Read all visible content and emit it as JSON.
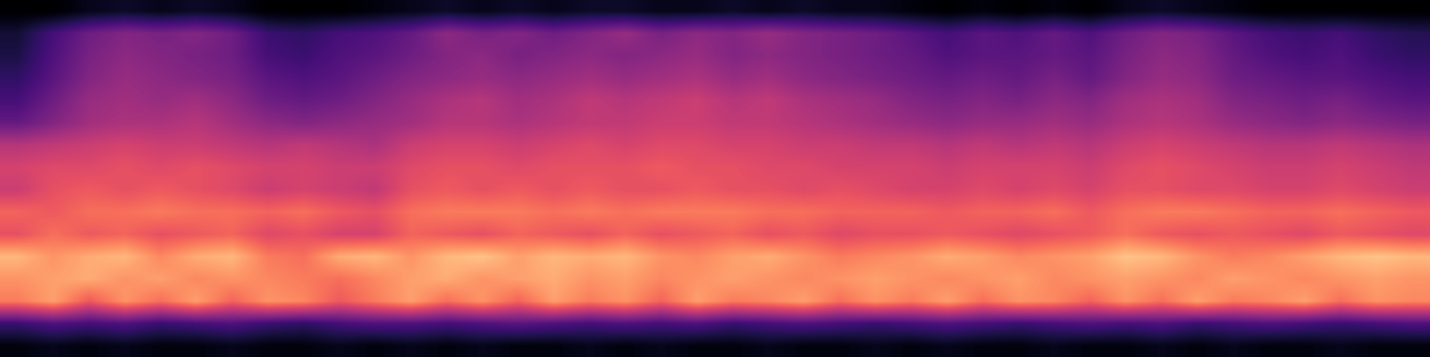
{
  "chart_data": {
    "type": "heatmap",
    "color": "magma",
    "tick_labels": false,
    "value_range": [
      -80,
      0
    ],
    "cells": [
      [
        -80,
        -80,
        -76,
        -74,
        -76,
        -74,
        -76,
        -80,
        -80,
        -80,
        -78,
        -76,
        -74,
        -76,
        -74,
        -76,
        -74,
        -74,
        -76,
        -76,
        -74,
        -76,
        -74,
        -76,
        -76,
        -78,
        -80,
        -78,
        -80,
        -78,
        -80,
        -76,
        -74,
        -76,
        -78,
        -80,
        -80,
        -80,
        -80,
        -80
      ],
      [
        -72,
        -62,
        -54,
        -50,
        -52,
        -50,
        -54,
        -64,
        -66,
        -62,
        -60,
        -56,
        -48,
        -52,
        -50,
        -54,
        -50,
        -46,
        -52,
        -48,
        -50,
        -46,
        -50,
        -52,
        -54,
        -58,
        -62,
        -58,
        -60,
        -56,
        -60,
        -54,
        -50,
        -52,
        -58,
        -62,
        -64,
        -62,
        -66,
        -68
      ],
      [
        -70,
        -60,
        -52,
        -48,
        -50,
        -52,
        -54,
        -62,
        -64,
        -60,
        -58,
        -54,
        -50,
        -48,
        -52,
        -50,
        -48,
        -50,
        -48,
        -46,
        -50,
        -48,
        -50,
        -52,
        -54,
        -56,
        -60,
        -58,
        -58,
        -56,
        -58,
        -52,
        -48,
        -50,
        -56,
        -60,
        -62,
        -60,
        -64,
        -66
      ],
      [
        -66,
        -58,
        -50,
        -46,
        -48,
        -50,
        -52,
        -58,
        -60,
        -58,
        -54,
        -50,
        -48,
        -46,
        -48,
        -46,
        -44,
        -46,
        -44,
        -42,
        -46,
        -44,
        -48,
        -50,
        -52,
        -54,
        -56,
        -54,
        -56,
        -52,
        -56,
        -50,
        -46,
        -48,
        -54,
        -56,
        -58,
        -58,
        -60,
        -62
      ],
      [
        -62,
        -54,
        -46,
        -44,
        -46,
        -44,
        -48,
        -54,
        -56,
        -54,
        -50,
        -46,
        -42,
        -40,
        -44,
        -42,
        -38,
        -40,
        -38,
        -36,
        -40,
        -38,
        -42,
        -44,
        -46,
        -50,
        -52,
        -50,
        -52,
        -48,
        -50,
        -44,
        -42,
        -44,
        -50,
        -52,
        -54,
        -52,
        -56,
        -58
      ],
      [
        -56,
        -50,
        -44,
        -42,
        -42,
        -40,
        -44,
        -48,
        -50,
        -48,
        -46,
        -44,
        -40,
        -40,
        -42,
        -40,
        -38,
        -38,
        -36,
        -36,
        -38,
        -38,
        -40,
        -42,
        -44,
        -46,
        -48,
        -46,
        -46,
        -44,
        -46,
        -42,
        -40,
        -42,
        -46,
        -48,
        -50,
        -48,
        -50,
        -52
      ],
      [
        -40,
        -38,
        -36,
        -34,
        -36,
        -36,
        -38,
        -40,
        -38,
        -40,
        -42,
        -36,
        -34,
        -34,
        -36,
        -34,
        -32,
        -34,
        -32,
        -32,
        -34,
        -34,
        -36,
        -36,
        -38,
        -38,
        -40,
        -38,
        -40,
        -38,
        -40,
        -36,
        -34,
        -36,
        -38,
        -40,
        -40,
        -38,
        -40,
        -42
      ],
      [
        -34,
        -32,
        -32,
        -30,
        -32,
        -30,
        -32,
        -34,
        -34,
        -36,
        -36,
        -32,
        -30,
        -30,
        -32,
        -30,
        -30,
        -30,
        -28,
        -30,
        -30,
        -32,
        -32,
        -34,
        -34,
        -34,
        -36,
        -34,
        -34,
        -34,
        -36,
        -32,
        -30,
        -32,
        -34,
        -36,
        -36,
        -34,
        -36,
        -38
      ],
      [
        -36,
        -30,
        -28,
        -30,
        -28,
        -30,
        -32,
        -36,
        -34,
        -36,
        -38,
        -30,
        -28,
        -30,
        -28,
        -30,
        -28,
        -30,
        -30,
        -28,
        -30,
        -30,
        -32,
        -30,
        -32,
        -34,
        -34,
        -32,
        -34,
        -32,
        -34,
        -30,
        -30,
        -32,
        -32,
        -34,
        -34,
        -32,
        -34,
        -36
      ],
      [
        -26,
        -28,
        -24,
        -24,
        -22,
        -24,
        -24,
        -26,
        -24,
        -28,
        -30,
        -24,
        -22,
        -22,
        -22,
        -24,
        -22,
        -24,
        -22,
        -22,
        -22,
        -24,
        -24,
        -26,
        -26,
        -26,
        -28,
        -26,
        -26,
        -24,
        -28,
        -24,
        -22,
        -22,
        -24,
        -26,
        -26,
        -24,
        -26,
        -28
      ],
      [
        -30,
        -24,
        -28,
        -26,
        -30,
        -28,
        -26,
        -32,
        -30,
        -34,
        -34,
        -26,
        -28,
        -30,
        -26,
        -28,
        -30,
        -26,
        -30,
        -28,
        -26,
        -30,
        -28,
        -32,
        -30,
        -30,
        -28,
        -30,
        -32,
        -30,
        -28,
        -24,
        -28,
        -30,
        -28,
        -30,
        -32,
        -28,
        -30,
        -32
      ],
      [
        -12,
        -18,
        -14,
        -12,
        -20,
        -14,
        -12,
        -22,
        -24,
        -14,
        -12,
        -18,
        -12,
        -10,
        -16,
        -12,
        -14,
        -12,
        -18,
        -20,
        -16,
        -14,
        -18,
        -22,
        -20,
        -18,
        -14,
        -16,
        -20,
        -18,
        -16,
        -10,
        -12,
        -18,
        -22,
        -20,
        -16,
        -12,
        -10,
        -12
      ],
      [
        -18,
        -16,
        -14,
        -18,
        -16,
        -20,
        -18,
        -20,
        -22,
        -24,
        -20,
        -16,
        -14,
        -18,
        -16,
        -14,
        -18,
        -16,
        -20,
        -18,
        -16,
        -18,
        -20,
        -18,
        -16,
        -18,
        -20,
        -18,
        -16,
        -20,
        -18,
        -16,
        -18,
        -20,
        -16,
        -18,
        -20,
        -18,
        -16,
        -18
      ],
      [
        -22,
        -16,
        -28,
        -18,
        -24,
        -16,
        -26,
        -18,
        -20,
        -28,
        -22,
        -16,
        -24,
        -18,
        -26,
        -16,
        -22,
        -18,
        -26,
        -16,
        -22,
        -20,
        -16,
        -24,
        -18,
        -22,
        -16,
        -24,
        -18,
        -20,
        -26,
        -18,
        -24,
        -16,
        -22,
        -20,
        -16,
        -24,
        -18,
        -20
      ],
      [
        -64,
        -60,
        -62,
        -60,
        -64,
        -62,
        -60,
        -64,
        -66,
        -62,
        -60,
        -60,
        -62,
        -60,
        -58,
        -60,
        -62,
        -60,
        -62,
        -60,
        -64,
        -62,
        -60,
        -62,
        -64,
        -62,
        -60,
        -62,
        -64,
        -62,
        -60,
        -62,
        -60,
        -64,
        -62,
        -60,
        -62,
        -64,
        -62,
        -60
      ],
      [
        -78,
        -76,
        -78,
        -76,
        -78,
        -78,
        -76,
        -78,
        -78,
        -76,
        -78,
        -76,
        -78,
        -76,
        -78,
        -78,
        -76,
        -78,
        -76,
        -78,
        -78,
        -76,
        -78,
        -78,
        -76,
        -78,
        -76,
        -78,
        -78,
        -76,
        -78,
        -78,
        -76,
        -78,
        -76,
        -78,
        -78,
        -76,
        -78,
        -78
      ]
    ]
  }
}
